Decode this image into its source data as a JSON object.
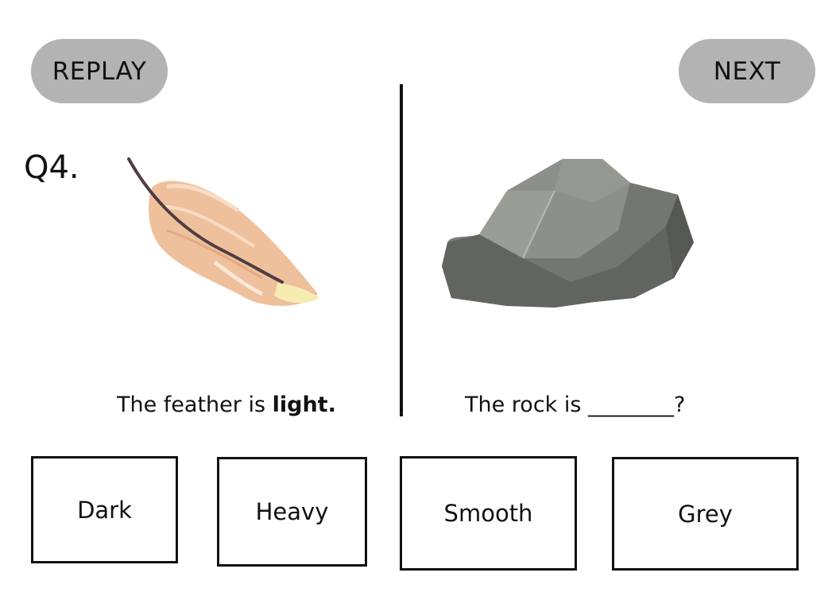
{
  "header": {
    "replay_label": "REPLAY",
    "next_label": "NEXT"
  },
  "question": {
    "number": "Q4.",
    "left_prefix": "The feather is ",
    "left_emphasis": "light.",
    "right_text": "The rock is ________?"
  },
  "choices": [
    {
      "label": "Dark"
    },
    {
      "label": "Heavy"
    },
    {
      "label": "Smooth"
    },
    {
      "label": "Grey"
    }
  ],
  "icons": {
    "left_image": "feather-icon",
    "right_image": "rock-icon"
  },
  "colors": {
    "button_bg": "#b3b3b3",
    "feather": "#efc09c",
    "rock": "#8a8c86"
  }
}
